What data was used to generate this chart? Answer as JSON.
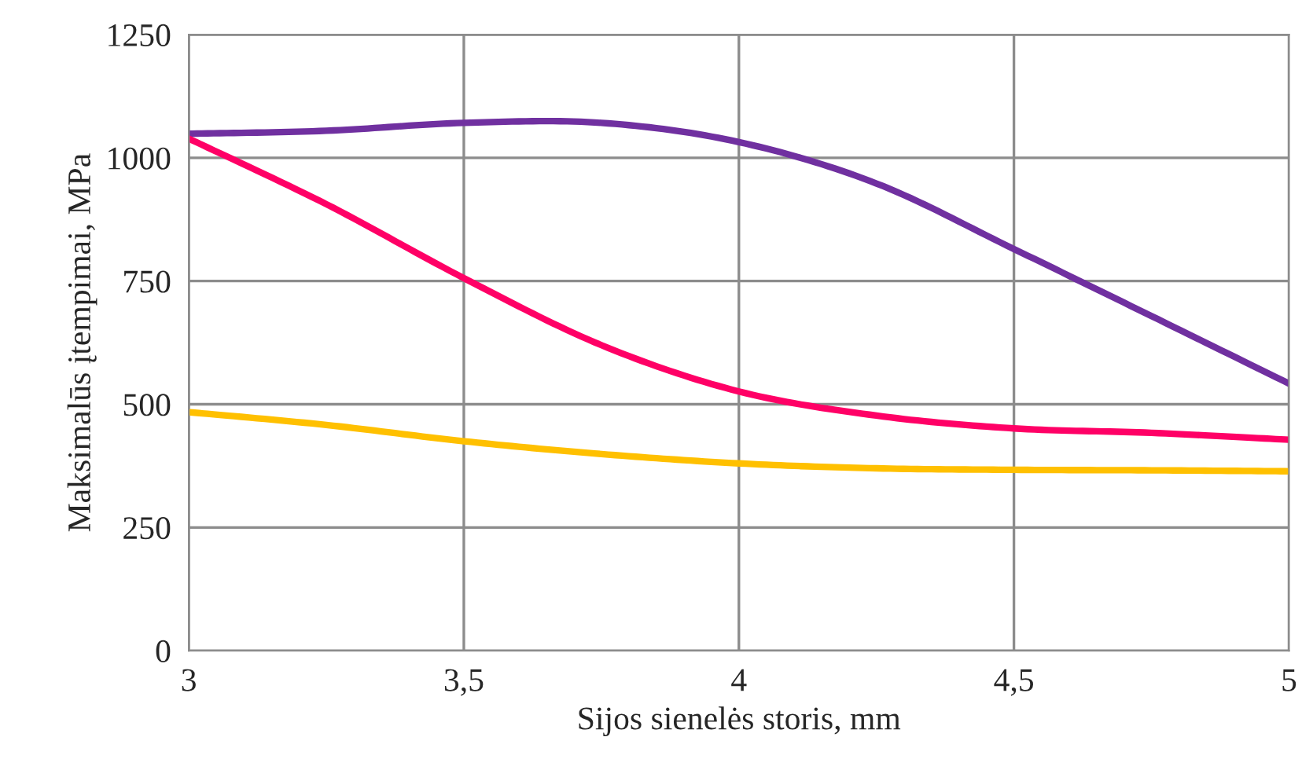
{
  "chart_data": {
    "type": "line",
    "xlabel": "Sijos sienelės storis, mm",
    "ylabel": "Maksimalūs įtempimai, MPa",
    "x": [
      3,
      3.25,
      3.5,
      3.75,
      4,
      4.25,
      4.5,
      4.75,
      5
    ],
    "series": [
      {
        "color": "#7030a0",
        "values": [
          1049,
          1055,
          1071,
          1071,
          1032,
          948,
          815,
          679,
          542
        ]
      },
      {
        "color": "#ff0066",
        "values": [
          1039,
          906,
          756,
          620,
          526,
          477,
          451,
          442,
          428
        ]
      },
      {
        "color": "#ffc000",
        "values": [
          484,
          458,
          425,
          399,
          380,
          370,
          367,
          366,
          364
        ]
      }
    ],
    "xlim": [
      3,
      5
    ],
    "xticks": [
      3,
      {
        "value": 3.5,
        "label": "3,5"
      },
      4,
      {
        "value": 4.5,
        "label": "4,5"
      },
      5
    ],
    "ylim": [
      0,
      1250
    ],
    "yticks": [
      0,
      250,
      500,
      750,
      1000,
      1250
    ],
    "grid": true,
    "marker": "none",
    "line_style": "solid"
  }
}
